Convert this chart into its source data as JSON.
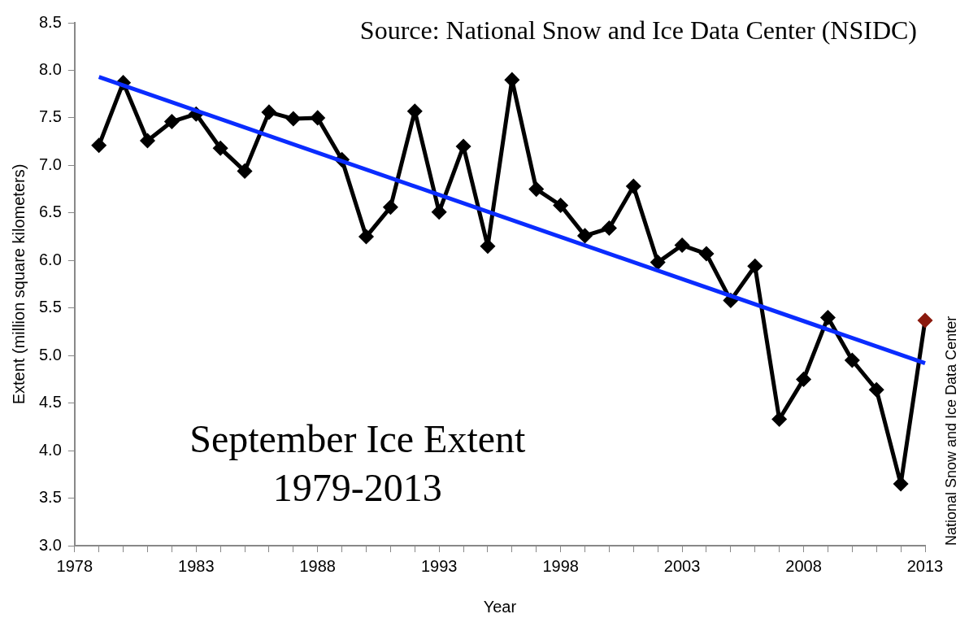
{
  "chart_data": {
    "type": "line",
    "title": "September Ice Extent",
    "subtitle": "1979-2013",
    "xlabel": "Year",
    "ylabel": "Extent (million square kilometers)",
    "annotations": [
      "Source: National Snow and Ice Data Center (NSIDC)",
      "National Snow and Ice Data Center"
    ],
    "x": [
      1979,
      1980,
      1981,
      1982,
      1983,
      1984,
      1985,
      1986,
      1987,
      1988,
      1989,
      1990,
      1991,
      1992,
      1993,
      1994,
      1995,
      1996,
      1997,
      1998,
      1999,
      2000,
      2001,
      2002,
      2003,
      2004,
      2005,
      2006,
      2007,
      2008,
      2009,
      2010,
      2011,
      2012,
      2013
    ],
    "series": [
      {
        "color": "#000000",
        "marker": "diamond",
        "colors": [
          "#000000",
          "#000000",
          "#000000",
          "#000000",
          "#000000",
          "#000000",
          "#000000",
          "#000000",
          "#000000",
          "#000000",
          "#000000",
          "#000000",
          "#000000",
          "#000000",
          "#000000",
          "#000000",
          "#000000",
          "#000000",
          "#000000",
          "#000000",
          "#000000",
          "#000000",
          "#000000",
          "#000000",
          "#000000",
          "#000000",
          "#000000",
          "#000000",
          "#000000",
          "#000000",
          "#000000",
          "#000000",
          "#000000",
          "#000000",
          "#8b1a0e"
        ],
        "values": [
          7.21,
          7.87,
          7.26,
          7.46,
          7.54,
          7.18,
          6.94,
          7.56,
          7.49,
          7.5,
          7.06,
          6.25,
          6.56,
          7.57,
          6.51,
          7.2,
          6.15,
          7.9,
          6.75,
          6.58,
          6.26,
          6.34,
          6.78,
          5.98,
          6.16,
          6.07,
          5.58,
          5.94,
          4.33,
          4.75,
          5.4,
          4.95,
          4.64,
          3.65,
          5.37
        ]
      },
      {
        "color": "#0a2cff",
        "marker": "none",
        "x": [
          1979,
          2013
        ],
        "values": [
          7.93,
          4.92
        ]
      }
    ],
    "xlim": [
      1978,
      2013
    ],
    "xticks": [
      1978,
      {
        "value": 1979,
        "label": null
      },
      {
        "value": 1980,
        "label": null
      },
      {
        "value": 1981,
        "label": null
      },
      {
        "value": 1982,
        "label": null
      },
      1983,
      {
        "value": 1984,
        "label": null
      },
      {
        "value": 1985,
        "label": null
      },
      {
        "value": 1986,
        "label": null
      },
      {
        "value": 1987,
        "label": null
      },
      1988,
      {
        "value": 1989,
        "label": null
      },
      {
        "value": 1990,
        "label": null
      },
      {
        "value": 1991,
        "label": null
      },
      {
        "value": 1992,
        "label": null
      },
      1993,
      {
        "value": 1994,
        "label": null
      },
      {
        "value": 1995,
        "label": null
      },
      {
        "value": 1996,
        "label": null
      },
      {
        "value": 1997,
        "label": null
      },
      1998,
      {
        "value": 1999,
        "label": null
      },
      {
        "value": 2000,
        "label": null
      },
      {
        "value": 2001,
        "label": null
      },
      {
        "value": 2002,
        "label": null
      },
      2003,
      {
        "value": 2004,
        "label": null
      },
      {
        "value": 2005,
        "label": null
      },
      {
        "value": 2006,
        "label": null
      },
      {
        "value": 2007,
        "label": null
      },
      2008,
      {
        "value": 2009,
        "label": null
      },
      {
        "value": 2010,
        "label": null
      },
      {
        "value": 2011,
        "label": null
      },
      {
        "value": 2012,
        "label": null
      },
      2013
    ],
    "ylim": [
      3.0,
      8.5
    ],
    "yticks": [
      {
        "value": 3,
        "label": "3.0"
      },
      {
        "value": 3.5,
        "label": "3.5"
      },
      {
        "value": 4,
        "label": "4.0"
      },
      {
        "value": 4.5,
        "label": "4.5"
      },
      {
        "value": 5,
        "label": "5.0"
      },
      {
        "value": 5.5,
        "label": "5.5"
      },
      {
        "value": 6,
        "label": "6.0"
      },
      {
        "value": 6.5,
        "label": "6.5"
      },
      {
        "value": 7,
        "label": "7.0"
      },
      {
        "value": 7.5,
        "label": "7.5"
      },
      {
        "value": 8,
        "label": "8.0"
      },
      {
        "value": 8.5,
        "label": "8.5"
      }
    ],
    "grid": false,
    "legend": false
  }
}
